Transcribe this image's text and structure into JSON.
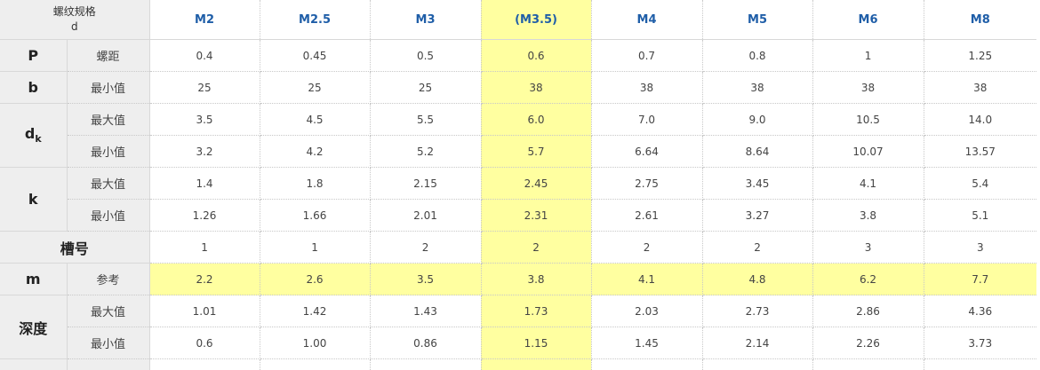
{
  "header": {
    "corner_line1": "螺纹规格",
    "corner_line2": "d",
    "columns": [
      "M2",
      "M2.5",
      "M3",
      "(M3.5)",
      "M4",
      "M5",
      "M6",
      "M8"
    ]
  },
  "highlight_column_index": 3,
  "highlight_color": "#ffffa0",
  "rows": [
    {
      "symbol": "P",
      "sub": "螺距",
      "values": [
        "0.4",
        "0.45",
        "0.5",
        "0.6",
        "0.7",
        "0.8",
        "1",
        "1.25"
      ]
    },
    {
      "symbol": "b",
      "sub": "最小值",
      "values": [
        "25",
        "25",
        "25",
        "38",
        "38",
        "38",
        "38",
        "38"
      ]
    },
    {
      "symbol": "d",
      "symbol_sub": "k",
      "sub": "最大值",
      "values": [
        "3.5",
        "4.5",
        "5.5",
        "6.0",
        "7.0",
        "9.0",
        "10.5",
        "14.0"
      ]
    },
    {
      "sub": "最小值",
      "values": [
        "3.2",
        "4.2",
        "5.2",
        "5.7",
        "6.64",
        "8.64",
        "10.07",
        "13.57"
      ]
    },
    {
      "symbol": "k",
      "sub": "最大值",
      "values": [
        "1.4",
        "1.8",
        "2.15",
        "2.45",
        "2.75",
        "3.45",
        "4.1",
        "5.4"
      ]
    },
    {
      "sub": "最小值",
      "values": [
        "1.26",
        "1.66",
        "2.01",
        "2.31",
        "2.61",
        "3.27",
        "3.8",
        "5.1"
      ]
    },
    {
      "symbol": "槽号",
      "values": [
        "1",
        "1",
        "2",
        "2",
        "2",
        "2",
        "3",
        "3"
      ]
    },
    {
      "symbol": "m",
      "sub": "参考",
      "values": [
        "2.2",
        "2.6",
        "3.5",
        "3.8",
        "4.1",
        "4.8",
        "6.2",
        "7.7"
      ]
    },
    {
      "symbol": "深度",
      "sub": "最大值",
      "values": [
        "1.01",
        "1.42",
        "1.43",
        "1.73",
        "2.03",
        "2.73",
        "2.86",
        "4.36"
      ]
    },
    {
      "sub": "最小值",
      "values": [
        "0.6",
        "1.00",
        "0.86",
        "1.15",
        "1.45",
        "2.14",
        "2.26",
        "3.73"
      ]
    }
  ]
}
